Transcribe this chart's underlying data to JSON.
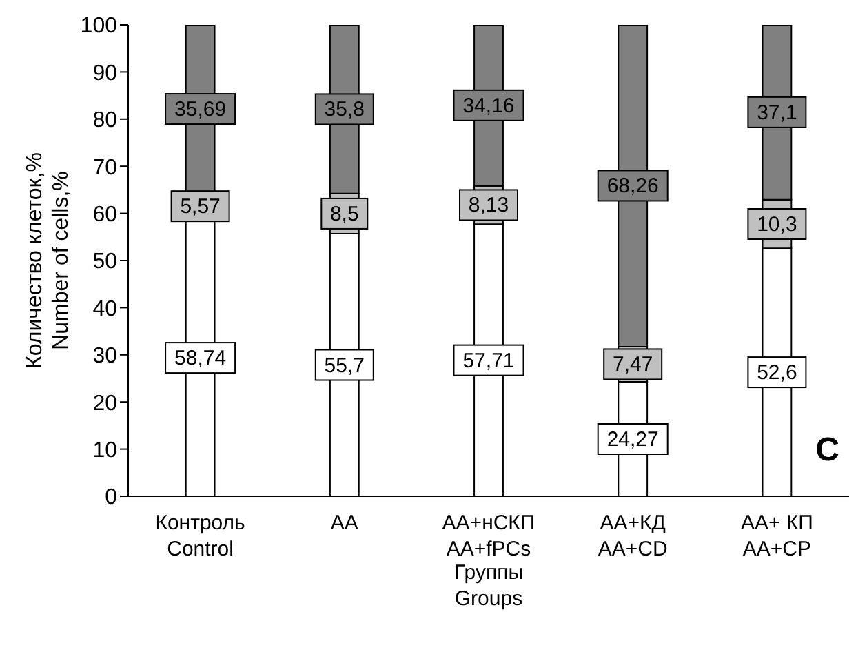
{
  "chart_data": {
    "type": "bar",
    "stacked": true,
    "xlabel": "Группы\nGroups",
    "ylabel": "Количество клеток,%\nNumber of cells,%",
    "categories": [
      "Контроль\nControl",
      "AA",
      "AA+нСКП\nAA+fPCs",
      "AA+КД\nAA+CD",
      "AA+ КП\nAA+CP"
    ],
    "series": [
      {
        "color": "#ffffff",
        "values": [
          58.74,
          55.7,
          57.71,
          24.27,
          52.6
        ],
        "value_labels": [
          "58,74",
          "55,7",
          "57,71",
          "24,27",
          "52,6"
        ]
      },
      {
        "color": "#c0c0c0",
        "values": [
          5.57,
          8.5,
          8.13,
          7.47,
          10.3
        ],
        "value_labels": [
          "5,57",
          "8,5",
          "8,13",
          "7,47",
          "10,3"
        ]
      },
      {
        "color": "#808080",
        "values": [
          35.69,
          35.8,
          34.16,
          68.26,
          37.1
        ],
        "value_labels": [
          "35,69",
          "35,8",
          "34,16",
          "68,26",
          "37,1"
        ]
      }
    ],
    "ylim": [
      0,
      100
    ],
    "yticks": [
      0,
      10,
      20,
      30,
      40,
      50,
      60,
      70,
      80,
      90,
      100
    ],
    "grid": false,
    "legend": false,
    "annotations": [
      "C"
    ]
  }
}
